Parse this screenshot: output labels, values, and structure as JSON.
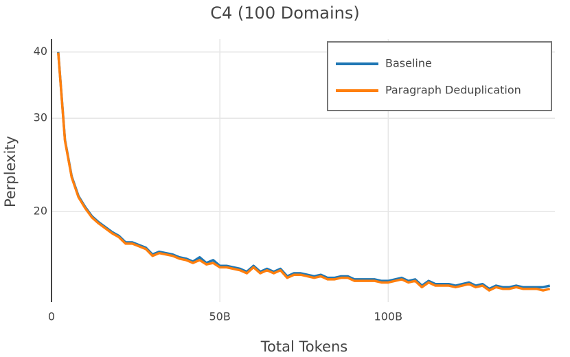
{
  "chart_data": {
    "type": "line",
    "title": "C4 (100 Domains)",
    "x_label": "Total Tokens",
    "y_label": "Perplexity",
    "x": [
      2,
      4,
      6,
      8,
      10,
      12,
      14,
      16,
      18,
      20,
      22,
      24,
      26,
      28,
      30,
      32,
      34,
      36,
      38,
      40,
      42,
      44,
      46,
      48,
      50,
      52,
      54,
      56,
      58,
      60,
      62,
      64,
      66,
      68,
      70,
      72,
      74,
      76,
      78,
      80,
      82,
      84,
      86,
      88,
      90,
      92,
      94,
      96,
      98,
      100,
      102,
      104,
      106,
      108,
      110,
      112,
      114,
      116,
      118,
      120,
      122,
      124,
      126,
      128,
      130,
      132,
      134,
      136,
      138,
      140,
      142,
      144,
      146,
      148
    ],
    "series": [
      {
        "name": "Baseline",
        "color": "#1f77b4",
        "values": [
          40.0,
          27.3,
          23.3,
          21.4,
          20.4,
          19.6,
          19.1,
          18.7,
          18.3,
          18.0,
          17.5,
          17.5,
          17.3,
          17.1,
          16.6,
          16.8,
          16.7,
          16.6,
          16.4,
          16.3,
          16.1,
          16.4,
          16.0,
          16.2,
          15.8,
          15.8,
          15.7,
          15.6,
          15.4,
          15.8,
          15.4,
          15.6,
          15.4,
          15.6,
          15.1,
          15.3,
          15.3,
          15.2,
          15.1,
          15.2,
          15.0,
          15.0,
          15.1,
          15.1,
          14.9,
          14.9,
          14.9,
          14.9,
          14.8,
          14.8,
          14.9,
          15.0,
          14.8,
          14.9,
          14.5,
          14.8,
          14.6,
          14.6,
          14.6,
          14.5,
          14.6,
          14.7,
          14.5,
          14.6,
          14.3,
          14.5,
          14.4,
          14.4,
          14.5,
          14.4,
          14.4,
          14.4,
          14.4,
          14.5
        ]
      },
      {
        "name": "Paragraph Deduplication",
        "color": "#ff7f0e",
        "values": [
          39.9,
          27.2,
          23.2,
          21.3,
          20.3,
          19.5,
          19.0,
          18.6,
          18.2,
          17.9,
          17.4,
          17.4,
          17.2,
          17.0,
          16.5,
          16.7,
          16.6,
          16.5,
          16.3,
          16.2,
          16.0,
          16.2,
          15.9,
          16.0,
          15.7,
          15.7,
          15.6,
          15.5,
          15.3,
          15.7,
          15.3,
          15.5,
          15.3,
          15.5,
          15.0,
          15.2,
          15.2,
          15.1,
          15.0,
          15.1,
          14.9,
          14.9,
          15.0,
          15.0,
          14.8,
          14.8,
          14.8,
          14.8,
          14.7,
          14.7,
          14.8,
          14.9,
          14.7,
          14.8,
          14.4,
          14.7,
          14.5,
          14.5,
          14.5,
          14.4,
          14.5,
          14.6,
          14.4,
          14.5,
          14.2,
          14.4,
          14.3,
          14.3,
          14.4,
          14.3,
          14.3,
          14.3,
          14.2,
          14.3
        ]
      }
    ],
    "xlim": [
      0,
      149.5
    ],
    "xticks": [
      0,
      {
        "value": 50,
        "label": "50B"
      },
      {
        "value": 100,
        "label": "100B"
      }
    ],
    "ylim": [
      13.5,
      42.3
    ],
    "yticks": [
      20,
      30,
      40
    ],
    "log_y": true,
    "grid": true,
    "legend": "upper right"
  }
}
